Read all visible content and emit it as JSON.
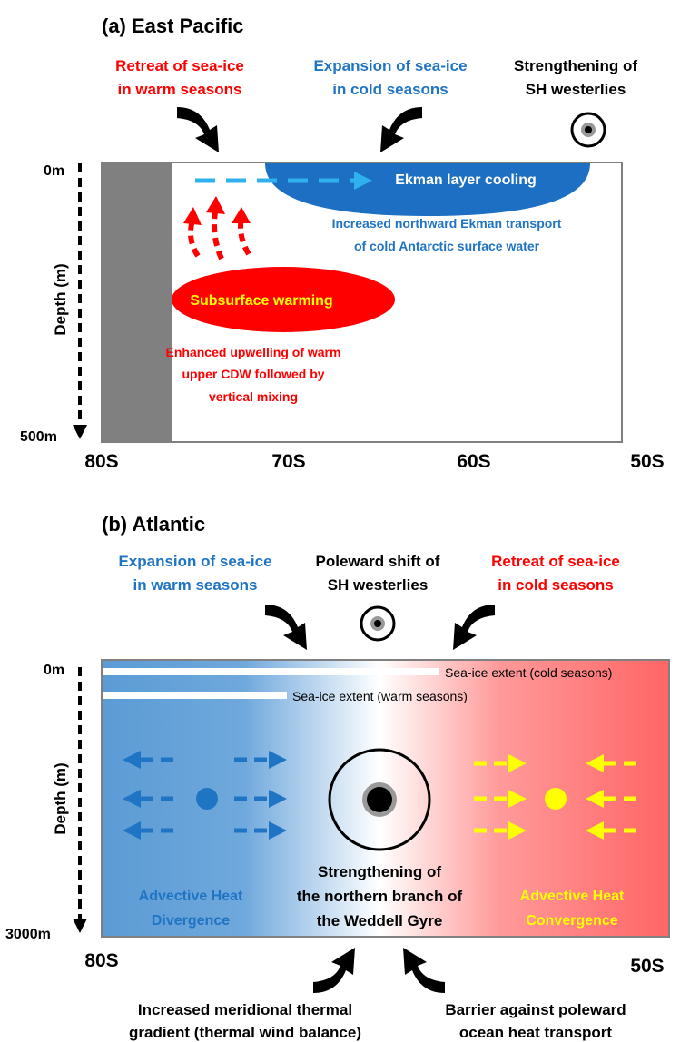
{
  "panel_a": {
    "title": "(a) East Pacific",
    "retreat": [
      "Retreat of sea-ice",
      "in warm seasons"
    ],
    "expansion": [
      "Expansion of sea-ice",
      "in cold seasons"
    ],
    "westerlies": [
      "Strengthening of",
      "SH westerlies"
    ],
    "depth_top": "0m",
    "depth_bottom": "500m",
    "depth_label": "Depth (m)",
    "x_labels": [
      "80S",
      "70S",
      "60S",
      "50S"
    ],
    "ekman_cooling": "Ekman layer cooling",
    "ekman_transport": [
      "Increased northward Ekman transport",
      "of cold Antarctic surface water"
    ],
    "subsurface_warming": "Subsurface warming",
    "upwelling": [
      "Enhanced upwelling of warm",
      "upper CDW followed by",
      "vertical mixing"
    ]
  },
  "panel_b": {
    "title": "(b) Atlantic",
    "expansion": [
      "Expansion of sea-ice",
      "in warm seasons"
    ],
    "westerlies": [
      "Poleward shift of",
      "SH westerlies"
    ],
    "retreat": [
      "Retreat of sea-ice",
      "in cold seasons"
    ],
    "depth_top": "0m",
    "depth_bottom": "3000m",
    "depth_label": "Depth (m)",
    "ice_cold": "Sea-ice extent (cold seasons)",
    "ice_warm": "Sea-ice extent (warm seasons)",
    "gyre": [
      "Strengthening of",
      "the northern branch of",
      "the Weddell Gyre"
    ],
    "divergence": [
      "Advective Heat",
      "Divergence"
    ],
    "convergence": [
      "Advective Heat",
      "Convergence"
    ],
    "x_labels": [
      "80S",
      "50S"
    ],
    "gradient": [
      "Increased meridional thermal",
      "gradient (thermal wind balance)"
    ],
    "barrier": [
      "Barrier against poleward",
      "ocean heat transport"
    ]
  }
}
